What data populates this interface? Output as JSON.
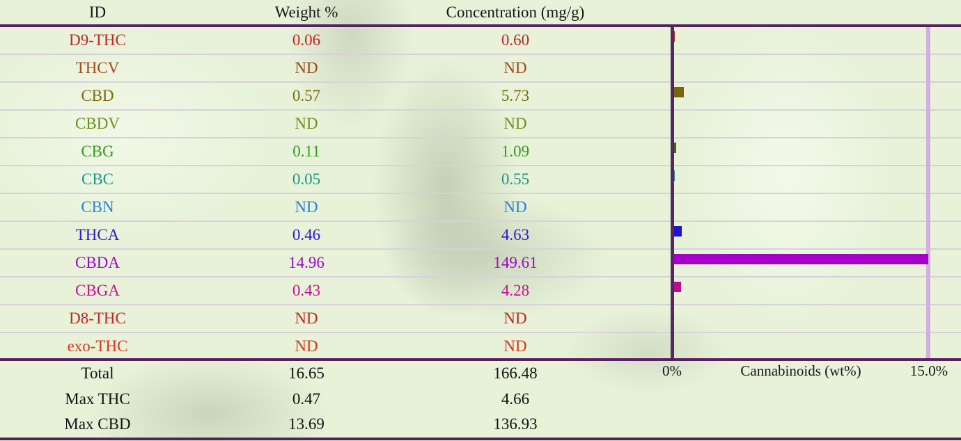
{
  "table": {
    "columns": [
      "ID",
      "Weight %",
      "Concentration (mg/g)"
    ],
    "rows": [
      {
        "id": "D9-THC",
        "weight": "0.06",
        "concentration": "0.60",
        "color": "#c2261f",
        "bar_color": "#c2261f",
        "bar": 0.06
      },
      {
        "id": "THCV",
        "weight": "ND",
        "concentration": "ND",
        "color": "#9d4c1a",
        "bar_color": "#9d4c1a",
        "bar": 0
      },
      {
        "id": "CBD",
        "weight": "0.57",
        "concentration": "5.73",
        "color": "#7d6b08",
        "bar_color": "#7a650a",
        "bar": 0.57
      },
      {
        "id": "CBDV",
        "weight": "ND",
        "concentration": "ND",
        "color": "#6e8f1c",
        "bar_color": "#6e8f1c",
        "bar": 0
      },
      {
        "id": "CBG",
        "weight": "0.11",
        "concentration": "1.09",
        "color": "#2f9c1e",
        "bar_color": "#4f5c0e",
        "bar": 0.11
      },
      {
        "id": "CBC",
        "weight": "0.05",
        "concentration": "0.55",
        "color": "#1d9489",
        "bar_color": "#1d9489",
        "bar": 0.05
      },
      {
        "id": "CBN",
        "weight": "ND",
        "concentration": "ND",
        "color": "#2b81d8",
        "bar_color": "#2b81d8",
        "bar": 0
      },
      {
        "id": "THCA",
        "weight": "0.46",
        "concentration": "4.63",
        "color": "#2a1bc8",
        "bar_color": "#2214c4",
        "bar": 0.46
      },
      {
        "id": "CBDA",
        "weight": "14.96",
        "concentration": "149.61",
        "color": "#9c0ac8",
        "bar_color": "#a300c8",
        "bar": 14.96
      },
      {
        "id": "CBGA",
        "weight": "0.43",
        "concentration": "4.28",
        "color": "#ca1191",
        "bar_color": "#bf0a8e",
        "bar": 0.43
      },
      {
        "id": "D8-THC",
        "weight": "ND",
        "concentration": "ND",
        "color": "#c2261f",
        "bar_color": "#c2261f",
        "bar": 0
      },
      {
        "id": "exo-THC",
        "weight": "ND",
        "concentration": "ND",
        "color": "#d8341d",
        "bar_color": "#d8341d",
        "bar": 0
      }
    ],
    "summary": [
      {
        "label": "Total",
        "weight": "16.65",
        "concentration": "166.48"
      },
      {
        "label": "Max THC",
        "weight": "0.47",
        "concentration": "4.66"
      },
      {
        "label": "Max CBD",
        "weight": "13.69",
        "concentration": "136.93"
      }
    ]
  },
  "chart_labels": {
    "min": "0%",
    "title": "Cannabinoids (wt%)",
    "max": "15.0%"
  },
  "chart_data": {
    "type": "bar",
    "orientation": "horizontal",
    "categories": [
      "D9-THC",
      "THCV",
      "CBD",
      "CBDV",
      "CBG",
      "CBC",
      "CBN",
      "THCA",
      "CBDA",
      "CBGA",
      "D8-THC",
      "exo-THC"
    ],
    "values": [
      0.06,
      0,
      0.57,
      0,
      0.11,
      0.05,
      0,
      0.46,
      14.96,
      0.43,
      0,
      0
    ],
    "nd_rows": [
      "THCV",
      "CBDV",
      "CBN",
      "D8-THC",
      "exo-THC"
    ],
    "title": "",
    "xlabel": "Cannabinoids (wt%)",
    "ylabel": "",
    "xlim": [
      0,
      15.0
    ],
    "x_tick_labels": [
      "0%",
      "15.0%"
    ],
    "grid": false,
    "legend": "none",
    "bar_colors": [
      "#c2261f",
      "#9d4c1a",
      "#7a650a",
      "#6e8f1c",
      "#4f5c0e",
      "#1d9489",
      "#2b81d8",
      "#2214c4",
      "#a300c8",
      "#bf0a8e",
      "#c2261f",
      "#d8341d"
    ]
  },
  "colors": {
    "background": "#e7f2d9",
    "heavy_rule": "#572060",
    "row_separator": "#d7d1d9",
    "axis_line": "#572760",
    "max_gridline": "#d5aee0"
  }
}
